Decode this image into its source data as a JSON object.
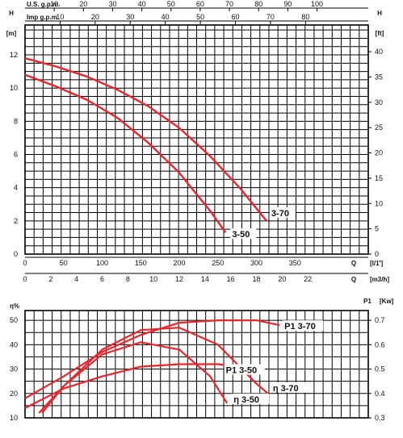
{
  "chart_data": [
    {
      "type": "line",
      "scales": {
        "top1": {
          "label": "U.S. g.p.m.",
          "ticks": [
            10,
            20,
            30,
            40,
            50,
            60,
            70,
            80,
            90,
            100
          ]
        },
        "top2": {
          "label": "Imp g.p.m.",
          "ticks": [
            10,
            20,
            30,
            40,
            50,
            60,
            70,
            80
          ]
        },
        "bottom1": {
          "ticks": [
            0,
            50,
            100,
            150,
            200,
            250,
            300,
            350
          ],
          "label_left": "Q",
          "label_right": "[l/1']"
        },
        "bottom2": {
          "ticks": [
            0,
            2,
            4,
            6,
            8,
            10,
            12,
            14,
            16,
            18,
            20,
            22
          ],
          "label_left": "Q",
          "label_right": "[m3/h]"
        },
        "left": {
          "title": "H",
          "unit": "[m]",
          "ticks": [
            0,
            2,
            4,
            6,
            8,
            10,
            12
          ]
        },
        "right": {
          "title": "H",
          "unit": "[ft]",
          "ticks": [
            0,
            5,
            10,
            15,
            20,
            25,
            30,
            35,
            40
          ]
        }
      },
      "xlim": [
        0,
        445
      ],
      "ylim": [
        0,
        13.8
      ],
      "grid": true,
      "series": [
        {
          "name": "3-70",
          "color": "#e8262b",
          "x": [
            0,
            40,
            80,
            120,
            160,
            200,
            240,
            280,
            313
          ],
          "y": [
            11.8,
            11.3,
            10.7,
            9.9,
            8.9,
            7.6,
            5.9,
            3.9,
            2.0
          ]
        },
        {
          "name": "3-50",
          "color": "#e8262b",
          "x": [
            0,
            40,
            80,
            120,
            160,
            200,
            240,
            260
          ],
          "y": [
            10.8,
            10.1,
            9.3,
            8.2,
            6.7,
            4.9,
            2.6,
            1.3
          ]
        }
      ]
    },
    {
      "type": "line",
      "scales": {
        "left": {
          "title": "η%",
          "ticks": [
            10,
            20,
            30,
            40,
            50
          ]
        },
        "right": {
          "title": "P1",
          "unit": "[Kw]",
          "ticks": [
            0.3,
            0.4,
            0.5,
            0.6,
            0.7
          ]
        }
      },
      "xlim": [
        0,
        445
      ],
      "ylim": [
        10,
        54
      ],
      "grid": true,
      "series": [
        {
          "name": "P1 3-70",
          "color": "#e8262b",
          "x": [
            0,
            50,
            100,
            150,
            200,
            250,
            300,
            330
          ],
          "y": [
            0.38,
            0.47,
            0.57,
            0.64,
            0.69,
            0.7,
            0.7,
            0.68
          ]
        },
        {
          "name": "P1 3-50",
          "color": "#e8262b",
          "x": [
            0,
            50,
            100,
            150,
            200,
            250,
            275
          ],
          "y": [
            0.34,
            0.42,
            0.47,
            0.51,
            0.52,
            0.52,
            0.51
          ]
        },
        {
          "name": "η 3-70",
          "color": "#e8262b",
          "x": [
            22,
            50,
            100,
            150,
            200,
            250,
            300,
            315
          ],
          "y": [
            12,
            23,
            38,
            46,
            47,
            40,
            24,
            20
          ]
        },
        {
          "name": "η 3-50",
          "color": "#e8262b",
          "x": [
            18,
            50,
            100,
            150,
            200,
            240,
            262
          ],
          "y": [
            12,
            23,
            36,
            41,
            38,
            27,
            16
          ]
        }
      ],
      "labels": {
        "p1_370": "P1 3-70",
        "p1_350": "P1 3-50",
        "eta_370": "η 3-70",
        "eta_350": "η 3-50"
      }
    }
  ]
}
